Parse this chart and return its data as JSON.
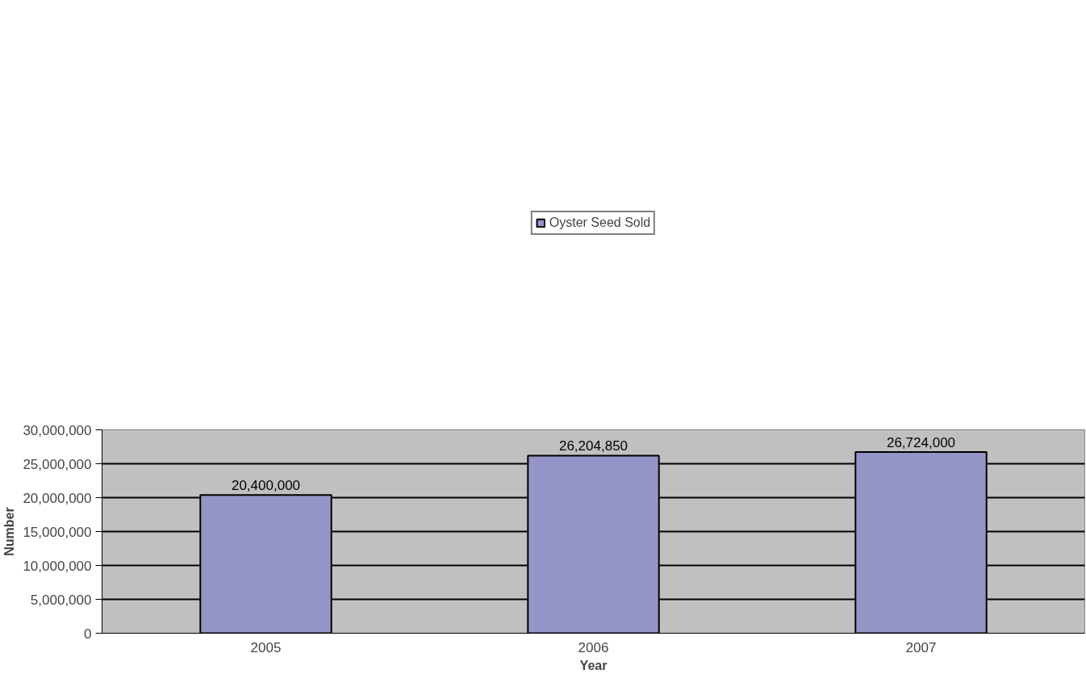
{
  "chart_data": {
    "type": "bar",
    "xlabel": "Year",
    "ylabel": "Number",
    "categories": [
      "2005",
      "2006",
      "2007"
    ],
    "series": [
      {
        "name": "Oyster Seed Sold",
        "color": "#9595c9",
        "values": [
          20400000,
          26204850,
          26724000
        ],
        "value_labels": [
          "20,400,000",
          "26,204,850",
          "26,724,000"
        ]
      }
    ],
    "ylim": [
      0,
      30000000
    ],
    "yticks": [
      {
        "value": 0,
        "label": "0"
      },
      {
        "value": 5000000,
        "label": "5,000,000"
      },
      {
        "value": 10000000,
        "label": "10,000,000"
      },
      {
        "value": 15000000,
        "label": "15,000,000"
      },
      {
        "value": 20000000,
        "label": "20,000,000"
      },
      {
        "value": 25000000,
        "label": "25,000,000"
      },
      {
        "value": 30000000,
        "label": "30,000,000"
      }
    ],
    "grid": "y",
    "legend": "top"
  }
}
